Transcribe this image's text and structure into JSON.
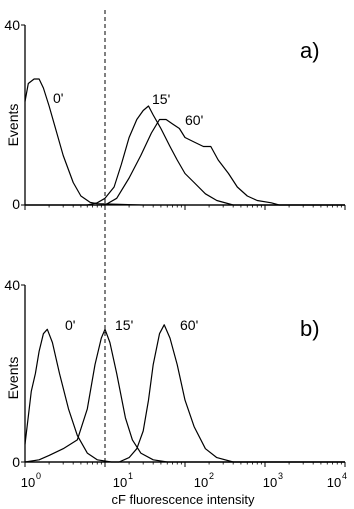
{
  "chart_data": [
    {
      "type": "line",
      "panel_label": "a)",
      "ylabel": "Events",
      "xscale": "log",
      "xlim": [
        1,
        10000
      ],
      "ylim": [
        0,
        40
      ],
      "yticks": [
        0,
        40
      ],
      "grid": false,
      "reference_line_x": 10,
      "series": [
        {
          "name": "0'",
          "points": [
            [
              1,
              23
            ],
            [
              1.1,
              27
            ],
            [
              1.3,
              28
            ],
            [
              1.5,
              28
            ],
            [
              1.7,
              26
            ],
            [
              2,
              22
            ],
            [
              2.5,
              16
            ],
            [
              3,
              11
            ],
            [
              4,
              5
            ],
            [
              5,
              2
            ],
            [
              6.5,
              0.6
            ],
            [
              8,
              0.3
            ],
            [
              12,
              0.2
            ],
            [
              30,
              0
            ],
            [
              10000,
              0
            ]
          ]
        },
        {
          "name": "15'",
          "points": [
            [
              1,
              0
            ],
            [
              6,
              0
            ],
            [
              8,
              0.5
            ],
            [
              10,
              1.5
            ],
            [
              13,
              4
            ],
            [
              16,
              9
            ],
            [
              20,
              15
            ],
            [
              25,
              19
            ],
            [
              30,
              21
            ],
            [
              35,
              22
            ],
            [
              40,
              20
            ],
            [
              50,
              17
            ],
            [
              65,
              13
            ],
            [
              80,
              10
            ],
            [
              100,
              7
            ],
            [
              130,
              5
            ],
            [
              180,
              2.5
            ],
            [
              250,
              1
            ],
            [
              400,
              0
            ],
            [
              10000,
              0
            ]
          ]
        },
        {
          "name": "60'",
          "points": [
            [
              1,
              0
            ],
            [
              10,
              0
            ],
            [
              14,
              1.5
            ],
            [
              20,
              6
            ],
            [
              28,
              11
            ],
            [
              38,
              16
            ],
            [
              48,
              19
            ],
            [
              58,
              19
            ],
            [
              70,
              18
            ],
            [
              85,
              17
            ],
            [
              100,
              15
            ],
            [
              130,
              14
            ],
            [
              170,
              13
            ],
            [
              210,
              13
            ],
            [
              260,
              10
            ],
            [
              350,
              7
            ],
            [
              450,
              4
            ],
            [
              600,
              2
            ],
            [
              800,
              1
            ],
            [
              1200,
              0.5
            ],
            [
              1500,
              0
            ],
            [
              10000,
              0
            ]
          ]
        }
      ],
      "annotations": [
        "0'",
        "15'",
        "60'"
      ]
    },
    {
      "type": "line",
      "panel_label": "b)",
      "ylabel": "Events",
      "xlabel": "cF fluorescence intensity",
      "xscale": "log",
      "xlim": [
        1,
        10000
      ],
      "ylim": [
        0,
        40
      ],
      "xticks": [
        "10^0",
        "10^1",
        "10^2",
        "10^3",
        "10^4"
      ],
      "yticks": [
        0,
        40
      ],
      "grid": false,
      "reference_line_x": 10,
      "series": [
        {
          "name": "0'",
          "points": [
            [
              1,
              4
            ],
            [
              1.2,
              16
            ],
            [
              1.35,
              20
            ],
            [
              1.5,
              25
            ],
            [
              1.7,
              29
            ],
            [
              1.9,
              30
            ],
            [
              2.2,
              27
            ],
            [
              2.7,
              20
            ],
            [
              3.5,
              12
            ],
            [
              4.5,
              6
            ],
            [
              6,
              2
            ],
            [
              8,
              0.5
            ],
            [
              12,
              0
            ],
            [
              10000,
              0
            ]
          ]
        },
        {
          "name": "15'",
          "points": [
            [
              1,
              0
            ],
            [
              1.5,
              0.5
            ],
            [
              2,
              1.5
            ],
            [
              3,
              3
            ],
            [
              4.5,
              5
            ],
            [
              6,
              12
            ],
            [
              7.5,
              22
            ],
            [
              9,
              28
            ],
            [
              10,
              30
            ],
            [
              11.5,
              27
            ],
            [
              14,
              20
            ],
            [
              18,
              10
            ],
            [
              22,
              5
            ],
            [
              28,
              2
            ],
            [
              40,
              0.5
            ],
            [
              60,
              0
            ],
            [
              10000,
              0
            ]
          ]
        },
        {
          "name": "60'",
          "points": [
            [
              1,
              0
            ],
            [
              15,
              0
            ],
            [
              20,
              1
            ],
            [
              25,
              3
            ],
            [
              30,
              7
            ],
            [
              35,
              14
            ],
            [
              40,
              22
            ],
            [
              48,
              29
            ],
            [
              55,
              31
            ],
            [
              65,
              28
            ],
            [
              80,
              22
            ],
            [
              100,
              14
            ],
            [
              130,
              8
            ],
            [
              180,
              3
            ],
            [
              250,
              1
            ],
            [
              400,
              0
            ],
            [
              10000,
              0
            ]
          ]
        }
      ],
      "annotations": [
        "0'",
        "15'",
        "60'"
      ]
    }
  ]
}
